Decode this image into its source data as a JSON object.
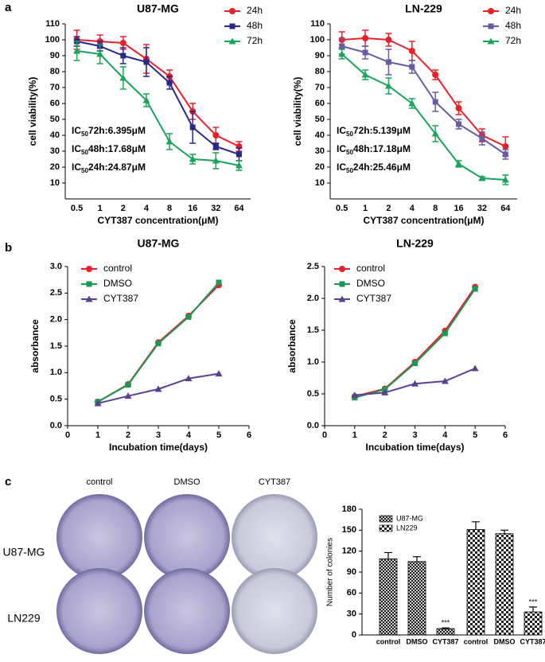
{
  "panel_labels": [
    "a",
    "b",
    "c"
  ],
  "colony_images": {
    "columns": [
      "control",
      "DMSO",
      "CYT387"
    ],
    "rows": [
      "U87-MG",
      "LN229"
    ]
  },
  "chart_data": [
    {
      "type": "line",
      "title": "U87-MG",
      "x_label": "CYT387 concentration(μM)",
      "y_label": "cell viability(%)",
      "categories": [
        "0.5",
        "1",
        "2",
        "4",
        "8",
        "16",
        "32",
        "64"
      ],
      "ylim": [
        0,
        110
      ],
      "yticks": [
        10,
        20,
        30,
        40,
        50,
        60,
        70,
        80,
        90,
        100,
        110
      ],
      "legend": "upper right",
      "series": [
        {
          "name": "24h",
          "color": "#e8202a",
          "marker": "circle",
          "values": [
            100,
            99,
            98,
            88,
            77,
            55,
            40,
            33
          ],
          "errors": [
            6,
            4,
            4,
            9,
            4,
            5,
            5,
            3
          ]
        },
        {
          "name": "48h",
          "color": "#27298a",
          "marker": "square",
          "values": [
            99,
            96,
            90,
            86,
            73,
            45,
            33,
            28
          ],
          "errors": [
            3,
            3,
            5,
            9,
            4,
            10,
            2,
            4
          ]
        },
        {
          "name": "72h",
          "color": "#1aa35a",
          "marker": "triangle",
          "values": [
            93,
            91,
            76,
            62,
            36,
            25,
            24,
            21
          ],
          "errors": [
            6,
            6,
            7,
            4,
            5,
            3,
            5,
            3
          ]
        }
      ],
      "annotations": [
        {
          "main": "IC",
          "sub": "50",
          "rest": "72h:6.395μM"
        },
        {
          "main": "IC",
          "sub": "50",
          "rest": "48h:17.68μM"
        },
        {
          "main": "IC",
          "sub": "50",
          "rest": "24h:24.87μM"
        }
      ]
    },
    {
      "type": "line",
      "title": "LN-229",
      "x_label": "CYT387 concentration(μM)",
      "y_label": "cell viability(%)",
      "categories": [
        "0.5",
        "1",
        "2",
        "4",
        "8",
        "16",
        "32",
        "64"
      ],
      "ylim": [
        0,
        110
      ],
      "yticks": [
        10,
        20,
        30,
        40,
        50,
        60,
        70,
        80,
        90,
        100,
        110
      ],
      "legend": "upper right",
      "series": [
        {
          "name": "24h",
          "color": "#e8202a",
          "marker": "circle",
          "values": [
            100,
            101,
            100,
            93,
            78,
            57,
            40,
            33
          ],
          "errors": [
            5,
            5,
            4,
            6,
            3,
            4,
            4,
            6
          ]
        },
        {
          "name": "48h",
          "color": "#6a5aa0",
          "marker": "square",
          "values": [
            96,
            92,
            86,
            83,
            61,
            47,
            38,
            28
          ],
          "errors": [
            5,
            4,
            8,
            4,
            6,
            3,
            4,
            3
          ]
        },
        {
          "name": "72h",
          "color": "#1aa35a",
          "marker": "triangle",
          "values": [
            91,
            78,
            71,
            60,
            41,
            22,
            13,
            12
          ],
          "errors": [
            3,
            3,
            5,
            3,
            5,
            2,
            1,
            3
          ]
        }
      ],
      "annotations": [
        {
          "main": "IC",
          "sub": "50",
          "rest": "72h:5.139μM"
        },
        {
          "main": "IC",
          "sub": "50",
          "rest": "48h:17.18μM"
        },
        {
          "main": "IC",
          "sub": "50",
          "rest": "24h:25.46μM"
        }
      ]
    },
    {
      "type": "line",
      "title": "U87-MG",
      "x_label": "Incubation time(days)",
      "y_label": "absorbance",
      "x": [
        1,
        2,
        3,
        4,
        5
      ],
      "xlim": [
        0,
        6
      ],
      "xticks": [
        0,
        1,
        2,
        3,
        4,
        5,
        6
      ],
      "ylim": [
        0,
        3
      ],
      "yticks": [
        {
          "value": 0,
          "label": "0.0"
        },
        0.5,
        {
          "value": 1,
          "label": "1.0"
        },
        1.5,
        {
          "value": 2,
          "label": "2.0"
        },
        2.5,
        {
          "value": 3,
          "label": "3.0"
        }
      ],
      "legend": "upper left",
      "series": [
        {
          "name": "control",
          "color": "#e8202a",
          "marker": "circle",
          "values": [
            0.45,
            0.78,
            1.57,
            2.07,
            2.65
          ]
        },
        {
          "name": "DMSO",
          "color": "#1a9a50",
          "marker": "square",
          "values": [
            0.45,
            0.77,
            1.55,
            2.05,
            2.7
          ]
        },
        {
          "name": "CYT387",
          "color": "#5b3f91",
          "marker": "triangle",
          "values": [
            0.42,
            0.56,
            0.69,
            0.89,
            0.98
          ]
        }
      ]
    },
    {
      "type": "line",
      "title": "LN-229",
      "x_label": "Incubation time(days)",
      "y_label": "absorbance",
      "x": [
        1,
        2,
        3,
        4,
        5
      ],
      "xlim": [
        0,
        6
      ],
      "xticks": [
        0,
        1,
        2,
        3,
        4,
        5,
        6
      ],
      "ylim": [
        0,
        2.5
      ],
      "yticks": [
        {
          "value": 0,
          "label": "0.0"
        },
        0.5,
        {
          "value": 1,
          "label": "1.0"
        },
        1.5,
        {
          "value": 2,
          "label": "2.0"
        },
        2.5
      ],
      "legend": "upper left",
      "series": [
        {
          "name": "control",
          "color": "#e8202a",
          "marker": "circle",
          "values": [
            0.46,
            0.58,
            1.0,
            1.49,
            2.18
          ]
        },
        {
          "name": "DMSO",
          "color": "#1a9a50",
          "marker": "square",
          "values": [
            0.44,
            0.57,
            0.98,
            1.45,
            2.15
          ]
        },
        {
          "name": "CYT387",
          "color": "#5b3f91",
          "marker": "triangle",
          "values": [
            0.48,
            0.52,
            0.66,
            0.7,
            0.9
          ]
        }
      ]
    },
    {
      "type": "bar",
      "y_label": "Number of colonies",
      "categories": [
        "control",
        "DMSO",
        "CYT387"
      ],
      "ylim": [
        0,
        180
      ],
      "yticks": [
        0,
        30,
        60,
        90,
        120,
        150,
        180
      ],
      "legend": "upper left",
      "series": [
        {
          "name": "U87-MG",
          "color": "#000000",
          "values": [
            109,
            105,
            9
          ],
          "errors": [
            9,
            7,
            1
          ],
          "significance": [
            null,
            null,
            "***"
          ]
        },
        {
          "name": "LN229",
          "color": "#000000",
          "values": [
            151,
            145,
            33
          ],
          "errors": [
            11,
            5,
            7
          ],
          "significance": [
            null,
            null,
            "***"
          ]
        }
      ]
    }
  ]
}
